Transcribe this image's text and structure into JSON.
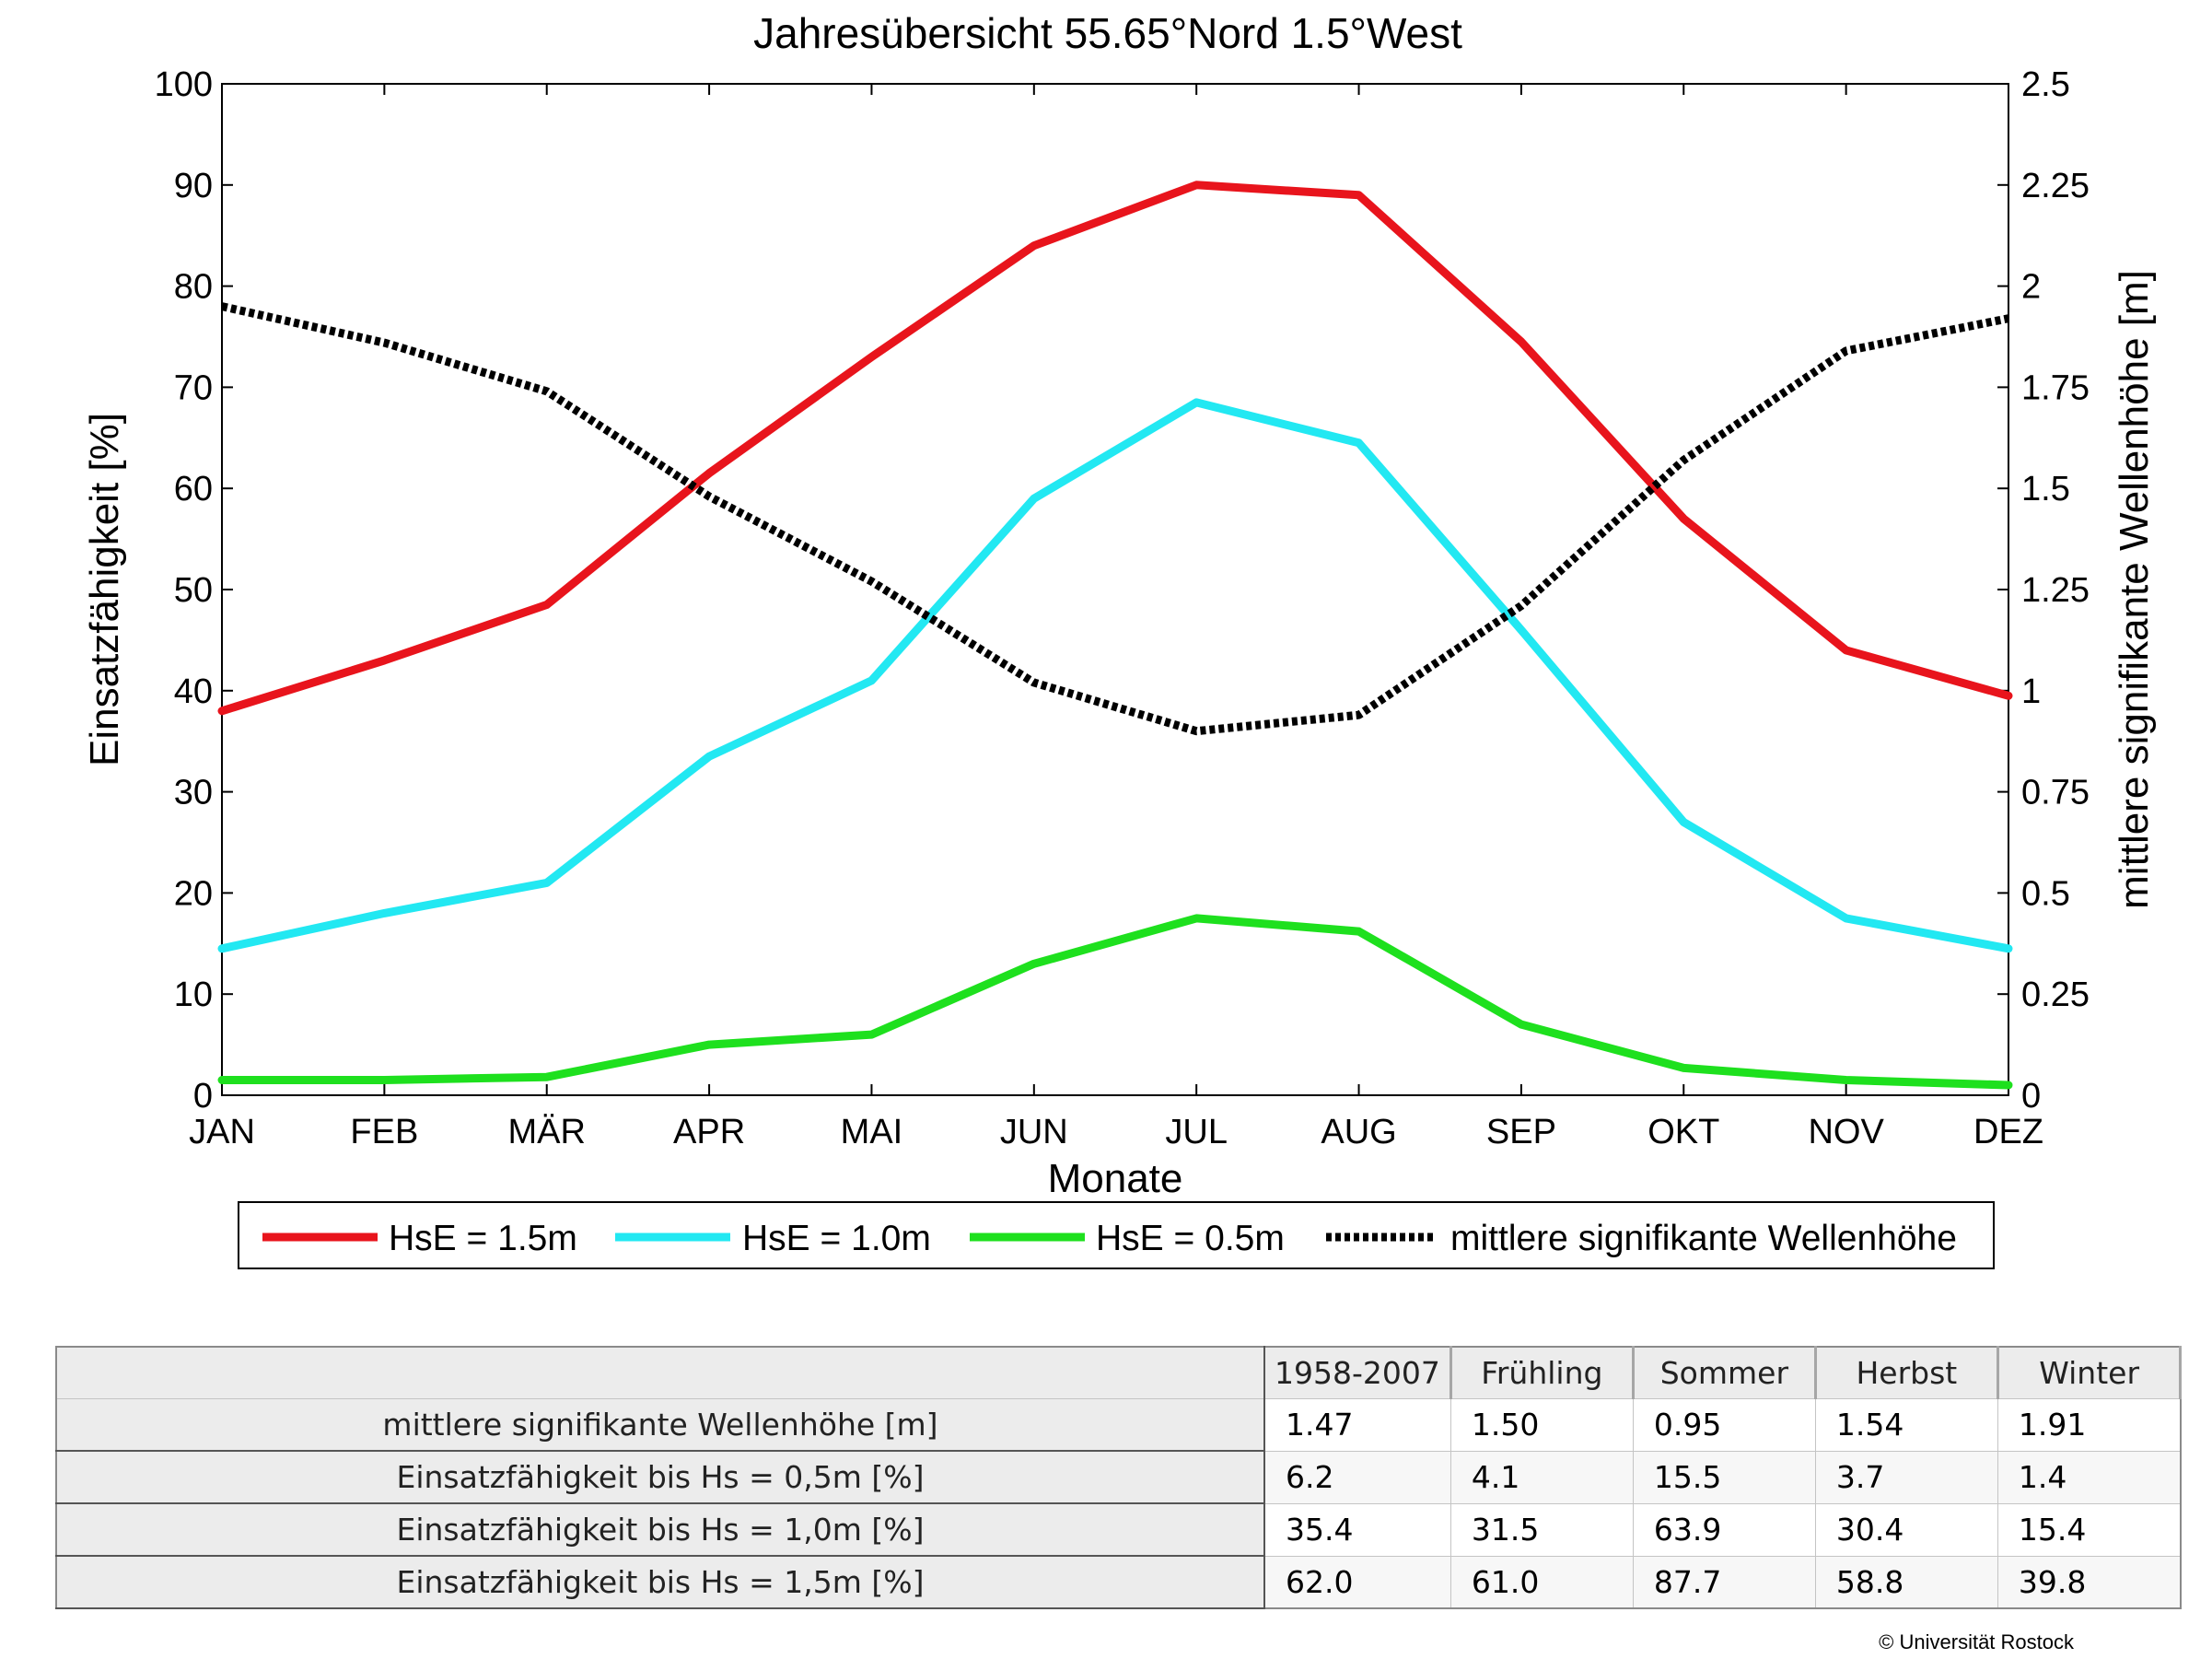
{
  "chart_data": {
    "type": "line",
    "title": "Jahresübersicht  55.65°Nord  1.5°West",
    "xlabel": "Monate",
    "ylabel": "Einsatzfähigkeit [%]",
    "y2label": "mittlere signifikante Wellenhöhe [m]",
    "categories": [
      "JAN",
      "FEB",
      "MÄR",
      "APR",
      "MAI",
      "JUN",
      "JUL",
      "AUG",
      "SEP",
      "OKT",
      "NOV",
      "DEZ"
    ],
    "ylim": [
      0,
      100
    ],
    "y2lim": [
      0,
      2.5
    ],
    "y_ticks": [
      "0",
      "10",
      "20",
      "30",
      "40",
      "50",
      "60",
      "70",
      "80",
      "90",
      "100"
    ],
    "y2_ticks": [
      "0",
      "0.25",
      "0.5",
      "0.75",
      "1",
      "1.25",
      "1.5",
      "1.75",
      "2",
      "2.25",
      "2.5"
    ],
    "grid": false,
    "legend_position": "bottom",
    "series": [
      {
        "name": "HsE = 1.5m",
        "axis": "left",
        "color": "#e8141c",
        "style": "solid",
        "values": [
          38,
          43,
          48.5,
          61.5,
          73,
          84,
          90,
          89,
          74.5,
          57,
          44,
          39.5
        ]
      },
      {
        "name": "HsE = 1.0m",
        "axis": "left",
        "color": "#22e8f2",
        "style": "solid",
        "values": [
          14.5,
          18,
          21,
          33.5,
          41,
          59,
          68.5,
          64.5,
          46,
          27,
          17.5,
          14.5
        ]
      },
      {
        "name": "HsE = 0.5m",
        "axis": "left",
        "color": "#1ee01e",
        "style": "solid",
        "values": [
          1.5,
          1.5,
          1.8,
          5,
          6,
          13,
          17.5,
          16.2,
          7,
          2.7,
          1.5,
          1
        ]
      },
      {
        "name": "mittlere signifikante Wellenhöhe",
        "axis": "right",
        "color": "#000000",
        "style": "dotted",
        "values": [
          1.95,
          1.86,
          1.74,
          1.48,
          1.27,
          1.02,
          0.9,
          0.94,
          1.21,
          1.57,
          1.84,
          1.92
        ]
      }
    ]
  },
  "table": {
    "header": [
      "1958-2007",
      "Frühling",
      "Sommer",
      "Herbst",
      "Winter"
    ],
    "rows": [
      {
        "label": "mittlere signifikante Wellenhöhe [m]",
        "values": [
          "1.47",
          "1.50",
          "0.95",
          "1.54",
          "1.91"
        ]
      },
      {
        "label": "Einsatzfähigkeit bis Hs = 0,5m [%]",
        "values": [
          "6.2",
          "4.1",
          "15.5",
          "3.7",
          "1.4"
        ]
      },
      {
        "label": "Einsatzfähigkeit bis Hs = 1,0m [%]",
        "values": [
          "35.4",
          "31.5",
          "63.9",
          "30.4",
          "15.4"
        ]
      },
      {
        "label": "Einsatzfähigkeit bis Hs = 1,5m [%]",
        "values": [
          "62.0",
          "61.0",
          "87.7",
          "58.8",
          "39.8"
        ]
      }
    ]
  },
  "copyright": "© Universität Rostock"
}
